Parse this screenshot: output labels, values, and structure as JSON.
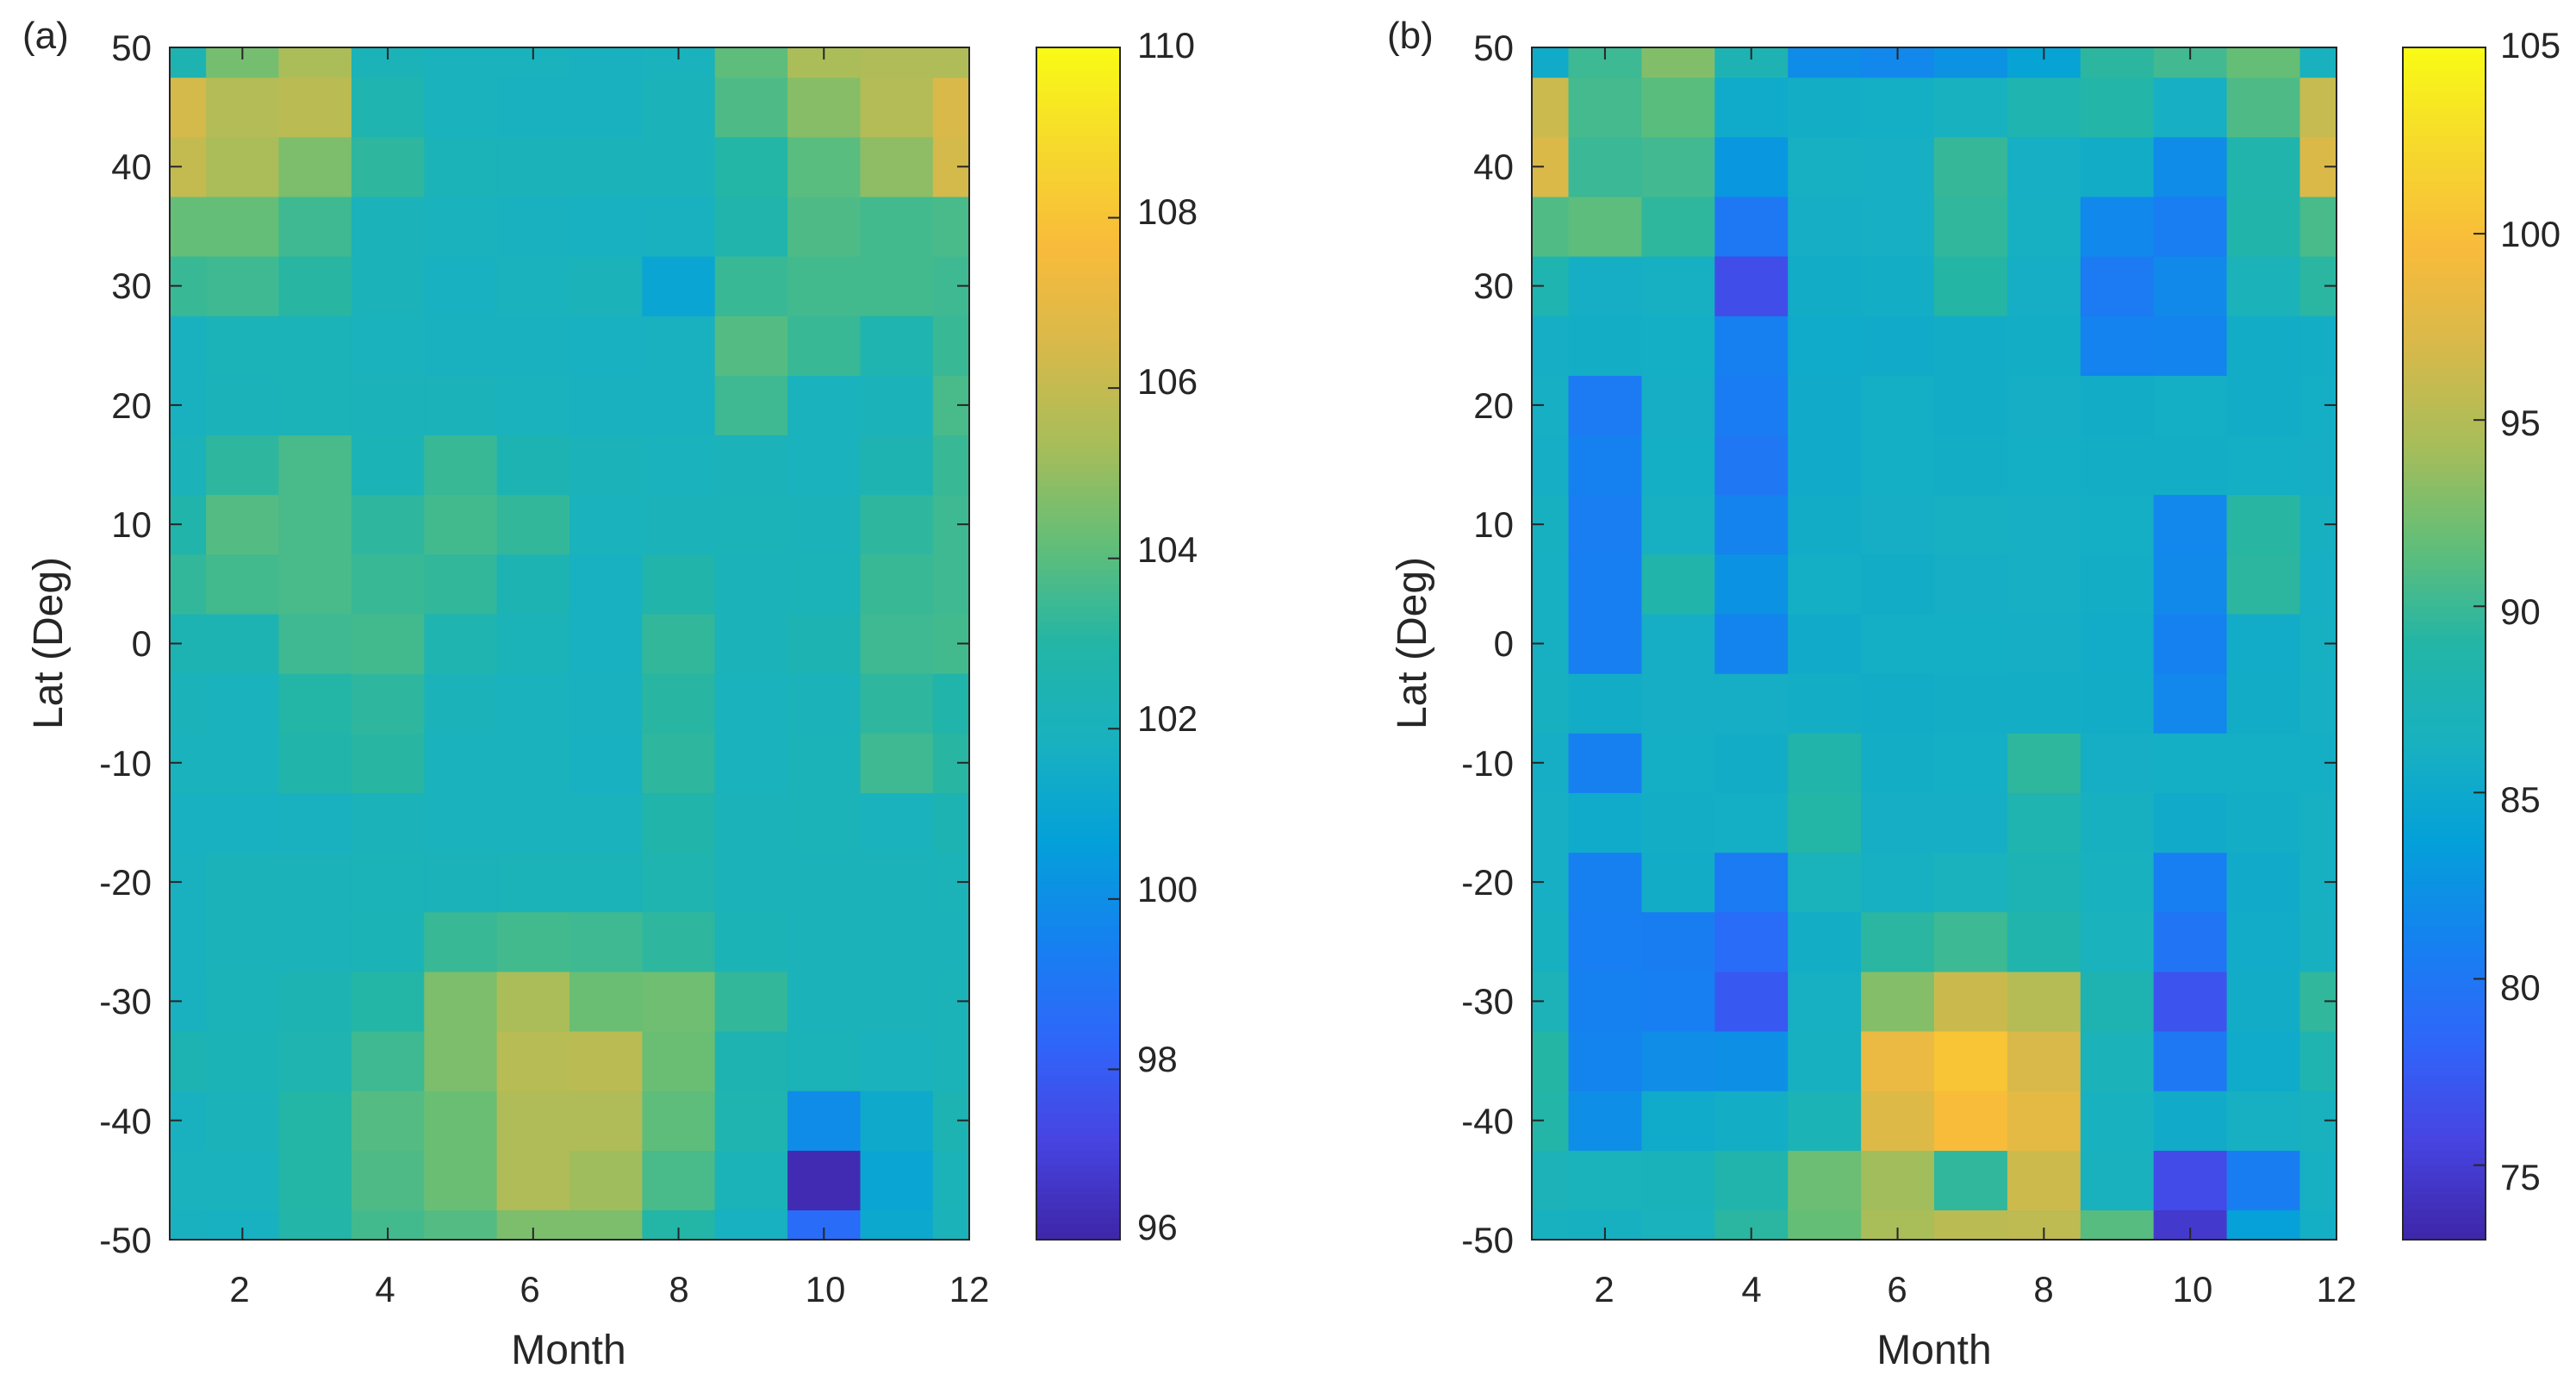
{
  "colormap": [
    "#3e26a8",
    "#4744e2",
    "#2f66fa",
    "#1581f0",
    "#04a0d9",
    "#18b1c0",
    "#23b5a6",
    "#62be78",
    "#a8bd59",
    "#d8b94a",
    "#f8bb3b",
    "#f6d92c",
    "#f9fb14"
  ],
  "chart_data": [
    {
      "id": "a",
      "panel_label": "(a)",
      "type": "heatmap",
      "title": "",
      "xlabel": "Month",
      "ylabel": "Lat (Deg)",
      "xlim": [
        1,
        12
      ],
      "ylim": [
        -50,
        50
      ],
      "xticks": [
        2,
        4,
        6,
        8,
        10,
        12
      ],
      "yticks": [
        -50,
        -40,
        -30,
        -20,
        -10,
        0,
        10,
        20,
        30,
        40,
        50
      ],
      "clim": [
        96,
        110
      ],
      "colorbar_ticks": [
        96,
        98,
        100,
        102,
        104,
        106,
        108,
        110
      ],
      "grid": false,
      "x": [
        1,
        2,
        3,
        4,
        5,
        6,
        7,
        8,
        9,
        10,
        11,
        12
      ],
      "y": [
        -50,
        -45,
        -40,
        -35,
        -30,
        -25,
        -20,
        -15,
        -10,
        -5,
        0,
        5,
        10,
        15,
        20,
        25,
        30,
        35,
        40,
        45,
        50
      ],
      "z": [
        [
          101.9,
          101.8,
          102.9,
          103.6,
          103.9,
          104.6,
          104.6,
          103.0,
          101.8,
          98.6,
          101.2,
          102.1
        ],
        [
          102.0,
          102.0,
          103.0,
          103.8,
          104.3,
          105.5,
          105.2,
          103.7,
          102.2,
          96.2,
          101.0,
          102.2
        ],
        [
          101.9,
          102.1,
          103.0,
          103.9,
          104.3,
          105.5,
          105.5,
          104.1,
          102.6,
          99.9,
          101.3,
          102.4
        ],
        [
          102.4,
          102.3,
          102.6,
          103.5,
          104.6,
          105.7,
          105.8,
          104.3,
          102.5,
          102.2,
          102.0,
          102.2
        ],
        [
          101.9,
          102.2,
          102.4,
          103.0,
          104.6,
          105.4,
          104.3,
          104.4,
          103.3,
          102.1,
          102.1,
          102.2
        ],
        [
          101.9,
          102.1,
          102.1,
          102.3,
          103.4,
          103.6,
          103.5,
          103.2,
          102.3,
          102.1,
          102.1,
          102.1
        ],
        [
          101.9,
          102.1,
          102.1,
          102.2,
          102.1,
          102.2,
          102.2,
          102.6,
          102.1,
          102.1,
          102.1,
          102.2
        ],
        [
          101.8,
          101.8,
          101.9,
          102.1,
          102.0,
          102.0,
          102.0,
          102.8,
          102.1,
          102.2,
          102.0,
          102.4
        ],
        [
          102.0,
          102.0,
          102.8,
          103.1,
          102.0,
          102.0,
          101.8,
          103.2,
          102.0,
          102.2,
          103.5,
          103.1
        ],
        [
          102.1,
          102.0,
          103.0,
          103.2,
          102.1,
          102.0,
          101.9,
          103.1,
          102.0,
          102.1,
          103.2,
          102.8
        ],
        [
          102.4,
          102.4,
          103.5,
          103.6,
          102.6,
          102.2,
          101.8,
          103.3,
          102.1,
          102.4,
          103.5,
          103.6
        ],
        [
          103.3,
          103.6,
          103.7,
          103.4,
          103.3,
          102.4,
          101.8,
          102.8,
          102.1,
          102.2,
          103.4,
          103.5
        ],
        [
          102.8,
          103.9,
          103.7,
          103.2,
          103.6,
          103.3,
          102.0,
          102.1,
          102.2,
          102.1,
          103.2,
          103.5
        ],
        [
          102.1,
          103.2,
          103.7,
          102.3,
          103.4,
          102.4,
          102.1,
          102.0,
          102.1,
          102.0,
          102.5,
          103.4
        ],
        [
          101.9,
          102.1,
          102.2,
          102.1,
          102.1,
          102.0,
          101.9,
          101.9,
          103.5,
          102.0,
          102.1,
          103.7
        ],
        [
          101.9,
          102.2,
          102.2,
          102.0,
          101.9,
          101.9,
          101.8,
          101.9,
          103.9,
          103.4,
          102.6,
          103.4
        ],
        [
          103.4,
          103.5,
          103.1,
          102.1,
          101.8,
          102.0,
          102.1,
          101.0,
          103.4,
          103.6,
          103.6,
          103.5
        ],
        [
          104.2,
          104.2,
          103.5,
          102.1,
          102.0,
          101.9,
          101.8,
          101.9,
          102.7,
          103.8,
          103.6,
          103.7
        ],
        [
          106.0,
          105.4,
          104.6,
          103.2,
          102.2,
          102.1,
          102.1,
          102.1,
          103.0,
          104.0,
          104.9,
          106.4
        ],
        [
          106.4,
          105.6,
          105.8,
          102.6,
          102.0,
          101.9,
          101.9,
          102.1,
          103.8,
          104.8,
          105.6,
          106.5
        ],
        [
          102.5,
          104.5,
          105.4,
          102.2,
          102.0,
          102.0,
          101.9,
          102.0,
          104.1,
          105.4,
          105.5,
          105.5
        ]
      ]
    },
    {
      "id": "b",
      "panel_label": "(b)",
      "type": "heatmap",
      "title": "",
      "xlabel": "Month",
      "ylabel": "Lat (Deg)",
      "xlim": [
        1,
        12
      ],
      "ylim": [
        -50,
        50
      ],
      "xticks": [
        2,
        4,
        6,
        8,
        10,
        12
      ],
      "yticks": [
        -50,
        -40,
        -30,
        -20,
        -10,
        0,
        10,
        20,
        30,
        40,
        50
      ],
      "clim": [
        73,
        105
      ],
      "colorbar_ticks": [
        75,
        80,
        85,
        90,
        95,
        100,
        105
      ],
      "grid": false,
      "x": [
        1,
        2,
        3,
        4,
        5,
        6,
        7,
        8,
        9,
        10,
        11,
        12
      ],
      "y": [
        -50,
        -45,
        -40,
        -35,
        -30,
        -25,
        -20,
        -15,
        -10,
        -5,
        0,
        5,
        10,
        15,
        20,
        25,
        30,
        35,
        40,
        45,
        50
      ],
      "z": [
        [
          86.4,
          86.2,
          86.7,
          89.3,
          91.8,
          94.4,
          95.4,
          95.5,
          91.2,
          74.7,
          83.8,
          85.8
        ],
        [
          87.2,
          86.8,
          86.9,
          88.4,
          92.0,
          94.1,
          89.6,
          96.4,
          86.5,
          76.2,
          80.6,
          86.1
        ],
        [
          88.9,
          82.1,
          85.2,
          85.7,
          87.4,
          97.4,
          99.8,
          98.0,
          86.3,
          85.4,
          86.1,
          86.5
        ],
        [
          89.1,
          81.3,
          82.0,
          82.2,
          86.2,
          98.5,
          100.6,
          97.1,
          87.1,
          80.1,
          85.3,
          88.1
        ],
        [
          87.2,
          81.0,
          80.8,
          77.3,
          86.1,
          93.0,
          96.2,
          95.1,
          87.9,
          76.9,
          85.6,
          89.6
        ],
        [
          86.2,
          80.8,
          80.6,
          78.9,
          85.7,
          89.3,
          90.1,
          88.4,
          86.7,
          79.8,
          85.5,
          86.2
        ],
        [
          86.0,
          80.9,
          85.6,
          80.4,
          86.8,
          86.1,
          86.7,
          87.6,
          86.3,
          80.8,
          85.4,
          86.1
        ],
        [
          86.0,
          85.3,
          85.7,
          85.8,
          89.0,
          85.9,
          85.9,
          88.0,
          86.2,
          85.4,
          85.7,
          86.1
        ],
        [
          85.9,
          80.9,
          85.8,
          85.6,
          88.5,
          85.7,
          85.8,
          89.5,
          85.9,
          85.8,
          85.8,
          85.8
        ],
        [
          86.2,
          85.6,
          85.9,
          85.9,
          85.7,
          85.6,
          85.7,
          85.7,
          85.6,
          81.5,
          85.6,
          86.0
        ],
        [
          86.1,
          80.8,
          85.9,
          81.3,
          85.4,
          85.8,
          85.8,
          85.9,
          85.5,
          81.0,
          85.5,
          86.1
        ],
        [
          86.1,
          80.8,
          88.6,
          82.5,
          85.8,
          85.6,
          85.9,
          86.0,
          85.7,
          81.7,
          89.4,
          86.0
        ],
        [
          86.2,
          80.7,
          86.1,
          81.2,
          85.6,
          85.9,
          86.1,
          86.0,
          85.8,
          81.5,
          89.2,
          86.2
        ],
        [
          85.9,
          81.0,
          85.8,
          80.0,
          85.4,
          85.8,
          85.7,
          85.8,
          85.7,
          85.7,
          85.8,
          85.9
        ],
        [
          86.0,
          80.3,
          85.9,
          80.5,
          85.4,
          85.8,
          85.6,
          85.9,
          85.6,
          85.8,
          85.6,
          85.8
        ],
        [
          85.9,
          85.7,
          85.8,
          80.9,
          85.3,
          85.4,
          85.6,
          85.7,
          81.1,
          81.3,
          85.6,
          85.7
        ],
        [
          88.0,
          85.9,
          86.1,
          76.4,
          85.6,
          85.7,
          89.1,
          85.9,
          80.3,
          81.7,
          87.1,
          89.3
        ],
        [
          90.9,
          91.4,
          89.5,
          80.1,
          85.9,
          86.0,
          89.6,
          86.1,
          81.6,
          80.7,
          88.5,
          90.6
        ],
        [
          97.2,
          90.0,
          90.3,
          82.9,
          86.1,
          86.0,
          89.8,
          86.0,
          85.6,
          81.9,
          88.3,
          97.2
        ],
        [
          96.3,
          90.4,
          91.3,
          85.2,
          85.7,
          85.8,
          86.4,
          88.0,
          88.9,
          86.0,
          90.8,
          96.0
        ],
        [
          85.4,
          90.1,
          92.9,
          87.8,
          81.9,
          81.5,
          82.5,
          84.1,
          89.4,
          90.3,
          91.8,
          86.6
        ]
      ]
    }
  ]
}
